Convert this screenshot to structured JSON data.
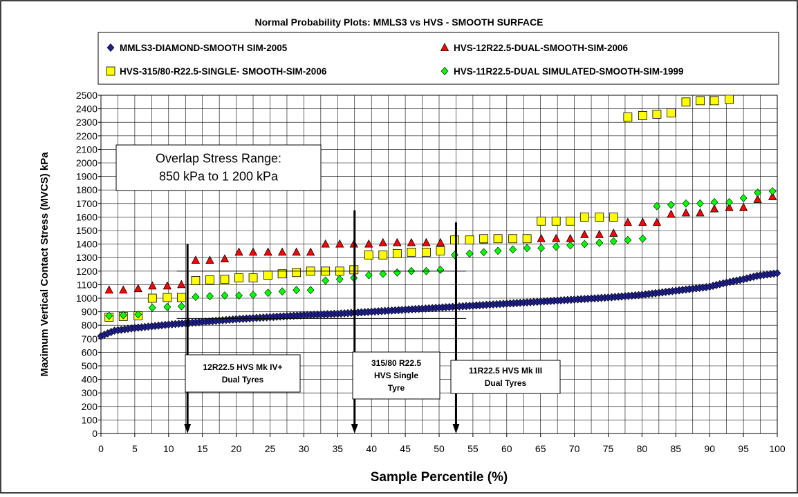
{
  "chart_data": {
    "type": "scatter",
    "title": "Normal Probability Plots: MMLS3 vs HVS - SMOOTH SURFACE",
    "xlabel": "Sample Percentile (%)",
    "ylabel": "Maximum Vertical Contact Stress (MVCS) kPa",
    "xlim": [
      0,
      100
    ],
    "ylim": [
      0,
      2500
    ],
    "x_ticks": [
      "0",
      "5",
      "10",
      "15",
      "20",
      "25",
      "30",
      "35",
      "40",
      "45",
      "50",
      "55",
      "60",
      "65",
      "70",
      "75",
      "80",
      "85",
      "90",
      "95",
      "100"
    ],
    "y_ticks": [
      "0",
      "100",
      "200",
      "300",
      "400",
      "500",
      "600",
      "700",
      "800",
      "900",
      "1000",
      "1100",
      "1200",
      "1300",
      "1400",
      "1500",
      "1600",
      "1700",
      "1800",
      "1900",
      "2000",
      "2100",
      "2200",
      "2300",
      "2400",
      "2500"
    ],
    "grid": true,
    "legend_position": "top",
    "series": [
      {
        "name": "MMLS3-DIAMOND-SMOOTH SIM-2005",
        "marker": "diamond",
        "color": "#1f1f8c",
        "curve": [
          [
            0,
            720
          ],
          [
            2,
            760
          ],
          [
            5,
            780
          ],
          [
            10,
            805
          ],
          [
            15,
            825
          ],
          [
            20,
            845
          ],
          [
            25,
            860
          ],
          [
            30,
            875
          ],
          [
            35,
            885
          ],
          [
            40,
            900
          ],
          [
            45,
            915
          ],
          [
            50,
            930
          ],
          [
            55,
            945
          ],
          [
            60,
            960
          ],
          [
            65,
            975
          ],
          [
            70,
            990
          ],
          [
            75,
            1005
          ],
          [
            80,
            1025
          ],
          [
            85,
            1055
          ],
          [
            90,
            1085
          ],
          [
            92,
            1110
          ],
          [
            95,
            1140
          ],
          [
            97,
            1165
          ],
          [
            100,
            1185
          ]
        ]
      },
      {
        "name": "HVS-12R22.5-DUAL-SMOOTH-SIM-2006",
        "marker": "triangle",
        "color": "#ff0000",
        "x": [
          1.2,
          3.3,
          5.5,
          7.6,
          9.8,
          11.9,
          14.0,
          16.1,
          18.3,
          21.8,
          22.5,
          24.1,
          26.3,
          28.4,
          30.5,
          32.6,
          34.8,
          36.9,
          39.1,
          41.2,
          43.3,
          45.4,
          47.6,
          49.8,
          51.9,
          54.0,
          56.2,
          58.3,
          60.4,
          62.6,
          64.7,
          66.9,
          69.0,
          71.1,
          73.3,
          75.4,
          77.5,
          79.7,
          81.8,
          83.9,
          86.1,
          88.2,
          90.4,
          92.5,
          94.6,
          96.8,
          98.9
        ],
        "values": [
          1060,
          1060,
          1070,
          1090,
          1090,
          1100,
          1280,
          1280,
          1290,
          1340,
          1340,
          1340,
          1340,
          1340,
          1340,
          1400,
          1400,
          1400,
          1400,
          1410,
          1410,
          1410,
          1410,
          1410,
          1430,
          1430,
          1430,
          1440,
          1440,
          1440,
          1440,
          1440,
          1440,
          1470,
          1470,
          1480,
          1560,
          1560,
          1560,
          1620,
          1630,
          1630,
          1660,
          1670,
          1670,
          1730,
          1750
        ],
        "x_drawn": [
          1.2,
          3.3,
          5.5,
          7.6,
          9.8,
          11.9,
          14.0,
          16.1,
          18.3,
          20.4,
          22.5,
          24.7,
          26.8,
          28.9,
          31.0,
          33.2,
          35.3,
          37.4,
          39.6,
          41.7,
          43.8,
          45.9,
          48.1,
          50.2,
          52.3,
          54.5,
          56.6,
          58.7,
          60.9,
          63.0,
          65.1,
          67.3,
          69.4,
          71.5,
          73.7,
          75.8,
          77.9,
          80.1,
          82.2,
          84.3,
          86.5,
          88.6,
          90.7,
          92.9,
          95.0,
          97.1,
          99.3
        ]
      },
      {
        "name": "HVS-315/80-R22.5-SINGLE- SMOOTH-SIM-2006",
        "marker": "square",
        "color": "#ffff00",
        "x": [
          1.2,
          3.3,
          5.5,
          7.6,
          9.8,
          11.9,
          14.0,
          16.1,
          18.3,
          20.4,
          22.5,
          24.7,
          26.8,
          28.9,
          31.0,
          33.2,
          35.3,
          37.4,
          39.6,
          41.7,
          43.8,
          45.9,
          48.1,
          50.2,
          52.3,
          54.5,
          56.6,
          58.7,
          60.9,
          63.0,
          65.1,
          67.3,
          69.4,
          71.5,
          73.7,
          75.8,
          77.9,
          80.1,
          82.2,
          84.3,
          86.5,
          88.6,
          90.7,
          92.9
        ],
        "values": [
          860,
          865,
          870,
          1000,
          1005,
          1005,
          1130,
          1135,
          1140,
          1150,
          1150,
          1170,
          1180,
          1190,
          1200,
          1200,
          1200,
          1210,
          1320,
          1320,
          1330,
          1340,
          1340,
          1350,
          1430,
          1430,
          1440,
          1440,
          1440,
          1440,
          1570,
          1570,
          1570,
          1600,
          1600,
          1600,
          2340,
          2350,
          2360,
          2370,
          2450,
          2460,
          2460,
          2470
        ]
      },
      {
        "name": "HVS-11R22.5-DUAL SIMULATED-SMOOTH-SIM-1999",
        "marker": "diamond",
        "color": "#00ff00",
        "x": [
          1.2,
          3.3,
          5.5,
          7.6,
          9.8,
          11.9,
          14.0,
          16.1,
          18.3,
          20.4,
          22.5,
          24.7,
          26.8,
          28.9,
          31.0,
          33.2,
          35.3,
          37.4,
          39.6,
          41.7,
          43.8,
          45.9,
          48.1,
          50.2,
          52.3,
          54.5,
          56.6,
          58.7,
          60.9,
          63.0,
          65.1,
          67.3,
          69.4,
          71.5,
          73.7,
          75.8,
          77.9,
          80.1,
          82.2,
          84.3,
          86.5,
          88.6,
          90.7,
          92.9,
          95.0,
          97.1,
          99.3
        ],
        "values": [
          870,
          875,
          880,
          930,
          935,
          940,
          1010,
          1015,
          1020,
          1020,
          1025,
          1040,
          1050,
          1060,
          1060,
          1130,
          1140,
          1150,
          1170,
          1180,
          1190,
          1200,
          1200,
          1210,
          1320,
          1330,
          1340,
          1350,
          1360,
          1370,
          1370,
          1380,
          1390,
          1400,
          1410,
          1420,
          1430,
          1440,
          1680,
          1690,
          1700,
          1700,
          1710,
          1710,
          1740,
          1780,
          1790
        ]
      }
    ],
    "annotations": [
      {
        "kind": "box",
        "lines": [
          "Overlap Stress Range:",
          "850 kPa to 1 200 kPa"
        ]
      },
      {
        "kind": "arrow",
        "x": 12.8,
        "from_y": 1400,
        "to_y": 0,
        "lines": [
          "12R22.5 HVS Mk IV+",
          "Dual Tyres"
        ]
      },
      {
        "kind": "arrow",
        "x": 37.5,
        "from_y": 1650,
        "to_y": 0,
        "lines": [
          "315/80 R22.5",
          "HVS Single",
          "Tyre"
        ]
      },
      {
        "kind": "arrow",
        "x": 52.5,
        "from_y": 1560,
        "to_y": 0,
        "lines": [
          "11R22.5 HVS Mk III",
          "Dual Tyres"
        ]
      }
    ]
  }
}
